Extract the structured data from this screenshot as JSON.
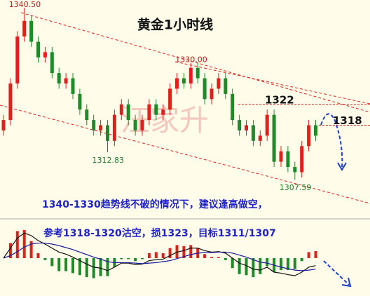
{
  "chart_data": {
    "type": "candlestick",
    "title": "黄金1小时线",
    "watermark": "汪家升",
    "ylim": [
      1301,
      1342
    ],
    "up_color": "#e0201c",
    "down_color": "#1f8a2a",
    "open": [
      1317,
      1319,
      1326,
      1335,
      1338,
      1334,
      1331,
      1332,
      1328,
      1326,
      1327,
      1324,
      1321,
      1319,
      1317,
      1318,
      1315,
      1320,
      1322,
      1319,
      1317,
      1319,
      1322,
      1320,
      1321,
      1325,
      1327,
      1326,
      1329,
      1327,
      1323,
      1325,
      1327,
      1324,
      1319,
      1317,
      1318,
      1315,
      1316,
      1320,
      1311,
      1313,
      1310,
      1309,
      1314,
      1318
    ],
    "high": [
      1320,
      1327,
      1336,
      1340.5,
      1339,
      1335,
      1333,
      1333,
      1329,
      1328,
      1328,
      1325,
      1322,
      1320,
      1319,
      1319,
      1321,
      1323,
      1323,
      1320,
      1320,
      1323,
      1323,
      1322,
      1326,
      1328,
      1328,
      1330,
      1330,
      1328,
      1326,
      1328,
      1328,
      1325,
      1320,
      1319,
      1319,
      1317,
      1321,
      1321,
      1314,
      1314,
      1311,
      1315,
      1319,
      1319
    ],
    "low": [
      1316,
      1318,
      1325,
      1334,
      1333,
      1330,
      1330,
      1327,
      1325,
      1325,
      1323,
      1320,
      1318,
      1316,
      1316,
      1312.83,
      1314,
      1319,
      1318,
      1316,
      1316,
      1318,
      1319,
      1319,
      1320,
      1324,
      1325,
      1325,
      1326,
      1322,
      1322,
      1324,
      1323,
      1318,
      1316,
      1316,
      1314,
      1314,
      1315,
      1310,
      1310,
      1309,
      1307.59,
      1308,
      1313,
      1315
    ],
    "close": [
      1319,
      1326,
      1335,
      1338,
      1334,
      1331,
      1332,
      1328,
      1326,
      1327,
      1324,
      1321,
      1319,
      1317,
      1318,
      1315,
      1320,
      1322,
      1319,
      1317,
      1319,
      1322,
      1320,
      1321,
      1325,
      1327,
      1326,
      1329,
      1327,
      1323,
      1325,
      1327,
      1324,
      1319,
      1317,
      1318,
      1315,
      1316,
      1320,
      1311,
      1313,
      1310,
      1309,
      1314,
      1318,
      1316
    ],
    "price_labels": [
      {
        "value": 1340.5,
        "label": "1340.50"
      },
      {
        "value": 1330,
        "label": "1330.00"
      },
      1312.83,
      1307.59
    ],
    "levels": [
      1322,
      1318
    ],
    "level_color": "#e0201c",
    "annotations": [
      "1340-1330趋势线不破的情况下，建议逢高做空，",
      "参考1318-1320沽空，损1323，目标1311/1307"
    ],
    "macd": {
      "ylim": [
        -7,
        7
      ],
      "hist": [
        0,
        3,
        5.4,
        5.6,
        3.4,
        1,
        -0.4,
        -1.6,
        -2.6,
        -2.6,
        -3,
        -3.4,
        -3.8,
        -4,
        -3.6,
        -3.6,
        -1.8,
        -0.2,
        -0.2,
        -0.6,
        -0.2,
        1,
        1.2,
        1,
        2,
        2.6,
        2.4,
        2.6,
        2,
        0.8,
        0.2,
        0.2,
        -0.4,
        -2,
        -3.2,
        -3.4,
        -3.8,
        -3.2,
        -1.6,
        -2.8,
        -2.4,
        -2.4,
        -2.2,
        -0.6,
        1.2,
        1.4
      ],
      "dif": [
        0,
        2,
        4,
        5,
        4.5,
        3.5,
        2.8,
        2,
        1.2,
        0.8,
        0.2,
        -0.5,
        -1.2,
        -1.8,
        -2,
        -2.5,
        -1.8,
        -1,
        -1,
        -1.3,
        -1.2,
        -0.5,
        -0.3,
        -0.2,
        0.5,
        1.2,
        1.5,
        2,
        2,
        1.5,
        1.2,
        1.3,
        1,
        0,
        -1,
        -1.5,
        -2.2,
        -2.4,
        -1.8,
        -2.8,
        -3,
        -3.3,
        -3.5,
        -2.8,
        -1.8,
        -1.5
      ],
      "dea": [
        0,
        0.5,
        1.3,
        2.2,
        2.8,
        3,
        3,
        2.8,
        2.5,
        2.1,
        1.7,
        1.2,
        0.7,
        0.2,
        -0.2,
        -0.7,
        -0.9,
        -0.9,
        -0.9,
        -1,
        -1.1,
        -1,
        -0.9,
        -0.7,
        -0.5,
        -0.1,
        0.3,
        0.7,
        1,
        1.1,
        1.1,
        1.2,
        1.2,
        1,
        0.6,
        0.2,
        -0.3,
        -0.8,
        -1,
        -1.4,
        -1.8,
        -2.1,
        -2.4,
        -2.5,
        -2.4,
        -2.2
      ],
      "dif_color": "#111111",
      "dea_color": "#1a1a9a"
    }
  }
}
